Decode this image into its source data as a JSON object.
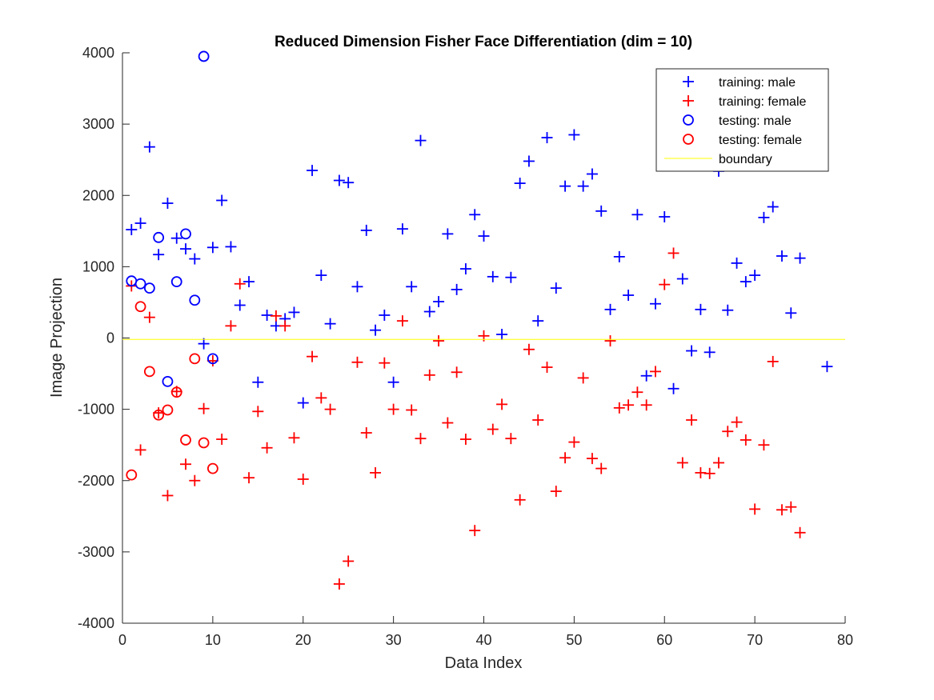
{
  "chart_data": {
    "type": "scatter",
    "title": "Reduced Dimension Fisher Face Differentiation (dim = 10)",
    "xlabel": "Data Index",
    "ylabel": "Image Projection",
    "xlim": [
      0,
      80
    ],
    "ylim": [
      -4000,
      4000
    ],
    "xticks": [
      "0",
      "10",
      "20",
      "30",
      "40",
      "50",
      "60",
      "70",
      "80"
    ],
    "yticks": [
      "-4000",
      "-3000",
      "-2000",
      "-1000",
      "0",
      "1000",
      "2000",
      "3000",
      "4000"
    ],
    "grid": false,
    "legend_position": "top-right",
    "series": [
      {
        "name": "training: male",
        "marker": "plus",
        "color": "#0000ff",
        "x": [
          1,
          2,
          3,
          4,
          5,
          6,
          7,
          8,
          9,
          10,
          11,
          12,
          13,
          14,
          15,
          16,
          17,
          18,
          19,
          20,
          21,
          22,
          23,
          24,
          25,
          26,
          27,
          28,
          29,
          30,
          31,
          32,
          33,
          34,
          35,
          36,
          37,
          38,
          39,
          40,
          41,
          42,
          43,
          44,
          45,
          46,
          47,
          48,
          49,
          50,
          51,
          52,
          53,
          54,
          55,
          56,
          57,
          58,
          59,
          60,
          61,
          62,
          63,
          64,
          65,
          66,
          67,
          68,
          69,
          70,
          71,
          72,
          73,
          74,
          75,
          78
        ],
        "y": [
          1520,
          1610,
          2680,
          1170,
          1890,
          1400,
          1250,
          1110,
          -80,
          1270,
          1930,
          1280,
          460,
          790,
          -620,
          320,
          170,
          270,
          360,
          -910,
          2350,
          880,
          200,
          2210,
          2180,
          720,
          1510,
          110,
          320,
          -620,
          1530,
          720,
          2770,
          370,
          510,
          1460,
          680,
          970,
          1730,
          1430,
          860,
          50,
          850,
          2170,
          2480,
          240,
          2810,
          700,
          2130,
          2850,
          2130,
          2300,
          1780,
          400,
          1140,
          600,
          1730,
          -530,
          480,
          1700,
          -710,
          830,
          -180,
          400,
          -200,
          2340,
          390,
          1050,
          790,
          880,
          1690,
          1840,
          1150,
          350,
          1120,
          -400
        ]
      },
      {
        "name": "training: female",
        "marker": "plus",
        "color": "#ff0000",
        "x": [
          1,
          2,
          3,
          4,
          5,
          6,
          7,
          8,
          9,
          10,
          11,
          12,
          13,
          14,
          15,
          16,
          17,
          18,
          19,
          20,
          21,
          22,
          23,
          24,
          25,
          26,
          27,
          28,
          29,
          30,
          31,
          32,
          33,
          34,
          35,
          36,
          37,
          38,
          39,
          40,
          41,
          42,
          43,
          44,
          45,
          46,
          47,
          48,
          49,
          50,
          51,
          52,
          53,
          54,
          55,
          56,
          57,
          58,
          59,
          60,
          61,
          62,
          63,
          64,
          65,
          66,
          67,
          68,
          69,
          70,
          71,
          72,
          73,
          74,
          75
        ],
        "y": [
          730,
          -1570,
          290,
          -1050,
          -2210,
          -750,
          -1770,
          -2000,
          -990,
          -320,
          -1420,
          170,
          760,
          -1960,
          -1030,
          -1540,
          310,
          170,
          -1400,
          -1980,
          -260,
          -840,
          -1000,
          -3450,
          -3130,
          -340,
          -1330,
          -1890,
          -350,
          -1000,
          240,
          -1010,
          -1410,
          -520,
          -40,
          -1190,
          -480,
          -1420,
          -2700,
          30,
          -1280,
          -930,
          -1410,
          -2270,
          -160,
          -1150,
          -410,
          -2150,
          -1680,
          -1460,
          -560,
          -1690,
          -1830,
          -40,
          -980,
          -940,
          -760,
          -940,
          -470,
          750,
          1190,
          -1750,
          -1150,
          -1890,
          -1900,
          -1750,
          -1310,
          -1180,
          -1430,
          -2400,
          -1500,
          -330,
          -2410,
          -2370,
          -2730
        ]
      },
      {
        "name": "testing: male",
        "marker": "circle",
        "color": "#0000ff",
        "x": [
          1,
          2,
          3,
          4,
          5,
          6,
          7,
          8,
          9,
          10
        ],
        "y": [
          800,
          760,
          700,
          1410,
          -610,
          790,
          1460,
          530,
          3950,
          -290
        ]
      },
      {
        "name": "testing: female",
        "marker": "circle",
        "color": "#ff0000",
        "x": [
          1,
          2,
          3,
          4,
          5,
          6,
          7,
          8,
          9,
          10
        ],
        "y": [
          -1920,
          440,
          -470,
          -1080,
          -1010,
          -760,
          -1430,
          -290,
          -1470,
          -1830
        ]
      },
      {
        "name": "boundary",
        "marker": "line",
        "color": "#ffff00",
        "x": [
          0,
          80
        ],
        "y": [
          -20,
          -20
        ]
      }
    ]
  }
}
